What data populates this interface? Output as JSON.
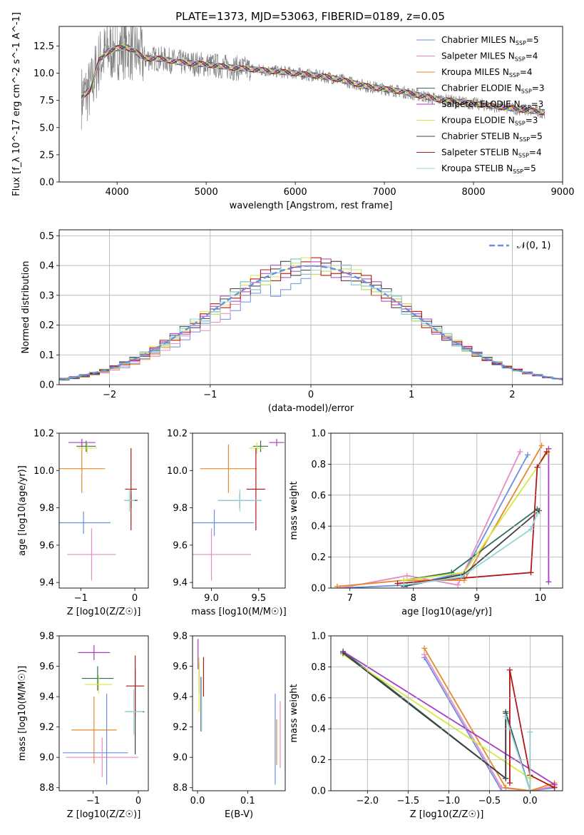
{
  "figure": {
    "title": "PLATE=1373, MJD=53063, FIBERID=0189, z=0.05"
  },
  "series_styles": [
    {
      "name": "Chabrier MILES",
      "n_ssp": "5",
      "color": "#6a8fe0"
    },
    {
      "name": "Salpeter MILES",
      "n_ssp": "4",
      "color": "#e98ac6"
    },
    {
      "name": "Kroupa MILES",
      "n_ssp": "4",
      "color": "#e6892b"
    },
    {
      "name": "Chabrier ELODIE",
      "n_ssp": "3",
      "color": "#2f6e58"
    },
    {
      "name": "Salpeter ELODIE",
      "n_ssp": "3",
      "color": "#a83cc2"
    },
    {
      "name": "Kroupa ELODIE",
      "n_ssp": "3",
      "color": "#d6e840"
    },
    {
      "name": "Chabrier STELIB",
      "n_ssp": "5",
      "color": "#404040"
    },
    {
      "name": "Salpeter STELIB",
      "n_ssp": "4",
      "color": "#b01818"
    },
    {
      "name": "Kroupa STELIB",
      "n_ssp": "5",
      "color": "#8fd6d9"
    }
  ],
  "chart_data": [
    {
      "id": "spectrum",
      "type": "line",
      "title": "PLATE=1373, MJD=53063, FIBERID=0189, z=0.05",
      "xlabel": "wavelength [Angstrom, rest frame]",
      "ylabel": "Flux [f_λ 10^-17 erg cm^-2 s^-1 A^-1]",
      "xlim": [
        3350,
        9000
      ],
      "ylim": [
        0,
        14.3
      ],
      "xticks": [
        "4000",
        "5000",
        "6000",
        "7000",
        "8000",
        "9000"
      ],
      "yticks": [
        "0.0",
        "2.5",
        "5.0",
        "7.5",
        "10.0",
        "12.5"
      ],
      "grid": false,
      "legend": "top-right",
      "data_color": "#808080",
      "data_extent_x": [
        3600,
        8800
      ],
      "model_x": [
        3600,
        3700,
        3800,
        3900,
        4000,
        4100,
        4200,
        4300,
        4500,
        4700,
        5000,
        5300,
        5600,
        6000,
        6400,
        6800,
        7200,
        7600,
        8000,
        8400,
        8800
      ],
      "model_y": [
        7.8,
        8.5,
        11.2,
        12.0,
        12.3,
        12.4,
        12.0,
        11.4,
        11.3,
        11.0,
        10.8,
        10.5,
        10.3,
        10.0,
        9.6,
        8.8,
        8.3,
        7.6,
        7.2,
        6.8,
        6.4
      ]
    },
    {
      "id": "residual-hist",
      "type": "step",
      "xlabel": "(data-model)/error",
      "ylabel": "Normed distribution",
      "xlim": [
        -2.5,
        2.5
      ],
      "ylim": [
        0,
        0.52
      ],
      "xticks": [
        "−2",
        "−1",
        "0",
        "1",
        "2"
      ],
      "yticks": [
        "0.0",
        "0.1",
        "0.2",
        "0.3",
        "0.4",
        "0.5"
      ],
      "grid": true,
      "legend": "top-right",
      "reference_label": "𝒩(0, 1)",
      "reference_color": "#6a8fe0",
      "bin_width": 0.1
    },
    {
      "id": "z-age",
      "type": "errorbar",
      "xlabel": "Z [log10(Z/Z☉)]",
      "ylabel": "age  [log10(age/yr)]",
      "xlim": [
        -1.4,
        0.25
      ],
      "ylim": [
        9.37,
        10.2
      ],
      "xticks": [
        "−1",
        "0"
      ],
      "yticks": [
        "9.4",
        "9.6",
        "9.8",
        "10.0",
        "10.2"
      ],
      "points": [
        {
          "series": 0,
          "x": -0.95,
          "y": 9.72,
          "xerr": 0.5,
          "yerr": 0.06
        },
        {
          "series": 1,
          "x": -0.8,
          "y": 9.55,
          "xerr": 0.45,
          "yerr": 0.14
        },
        {
          "series": 2,
          "x": -0.98,
          "y": 10.01,
          "xerr": 0.43,
          "yerr": 0.13
        },
        {
          "series": 3,
          "x": -0.9,
          "y": 10.13,
          "xerr": 0.18,
          "yerr": 0.03
        },
        {
          "series": 4,
          "x": -0.98,
          "y": 10.15,
          "xerr": 0.25,
          "yerr": 0.02
        },
        {
          "series": 5,
          "x": -0.88,
          "y": 10.12,
          "xerr": 0.18,
          "yerr": 0.03
        },
        {
          "series": 6,
          "x": -0.07,
          "y": 9.84,
          "xerr": 0.12,
          "yerr": 0.04
        },
        {
          "series": 7,
          "x": -0.07,
          "y": 9.9,
          "xerr": 0.11,
          "yerr": 0.22
        },
        {
          "series": 8,
          "x": -0.1,
          "y": 9.84,
          "xerr": 0.1,
          "yerr": 0.06
        }
      ]
    },
    {
      "id": "mass-age",
      "type": "errorbar",
      "xlabel": "mass [log10(M/M☉)]",
      "ylabel": "",
      "xlim": [
        8.8,
        9.78
      ],
      "ylim": [
        9.37,
        10.2
      ],
      "xticks": [
        "9.0",
        "9.5"
      ],
      "yticks": [
        "9.4",
        "9.6",
        "9.8",
        "10.0",
        "10.2"
      ],
      "points": [
        {
          "series": 0,
          "x": 9.03,
          "y": 9.72,
          "xerr": 0.42,
          "yerr": 0.07
        },
        {
          "series": 1,
          "x": 9.0,
          "y": 9.55,
          "xerr": 0.42,
          "yerr": 0.14
        },
        {
          "series": 2,
          "x": 9.18,
          "y": 10.01,
          "xerr": 0.3,
          "yerr": 0.13
        },
        {
          "series": 3,
          "x": 9.52,
          "y": 10.13,
          "xerr": 0.08,
          "yerr": 0.03
        },
        {
          "series": 4,
          "x": 9.69,
          "y": 10.15,
          "xerr": 0.08,
          "yerr": 0.02
        },
        {
          "series": 5,
          "x": 9.48,
          "y": 10.12,
          "xerr": 0.08,
          "yerr": 0.03
        },
        {
          "series": 6,
          "x": 9.3,
          "y": 9.84,
          "xerr": 0.23,
          "yerr": 0.04
        },
        {
          "series": 7,
          "x": 9.47,
          "y": 9.9,
          "xerr": 0.1,
          "yerr": 0.22
        },
        {
          "series": 8,
          "x": 9.3,
          "y": 9.84,
          "xerr": 0.23,
          "yerr": 0.06
        }
      ]
    },
    {
      "id": "age-weight",
      "type": "line",
      "xlabel": "age  [log10(age/yr)]",
      "ylabel": "mass weight",
      "xlim": [
        6.7,
        10.35
      ],
      "ylim": [
        0,
        1
      ],
      "xticks": [
        "7",
        "8",
        "9",
        "10"
      ],
      "yticks": [
        "0.0",
        "0.2",
        "0.4",
        "0.6",
        "0.8",
        "1.0"
      ],
      "grid": true,
      "series": [
        {
          "series": 0,
          "x": [
            6.85,
            7.9,
            8.8,
            9.8
          ],
          "y": [
            0.0,
            0.02,
            0.1,
            0.86
          ]
        },
        {
          "series": 1,
          "x": [
            6.85,
            7.9,
            8.7,
            9.68
          ],
          "y": [
            0.0,
            0.08,
            0.02,
            0.88
          ]
        },
        {
          "series": 2,
          "x": [
            6.8,
            7.85,
            8.8,
            10.02
          ],
          "y": [
            0.01,
            0.05,
            0.05,
            0.92
          ]
        },
        {
          "series": 3,
          "x": [
            7.85,
            8.6,
            9.95
          ],
          "y": [
            0.05,
            0.1,
            0.51
          ]
        },
        {
          "series": 4,
          "x": [
            10.13,
            10.13
          ],
          "y": [
            0.04,
            0.9
          ]
        },
        {
          "series": 5,
          "x": [
            7.85,
            8.8,
            10.12
          ],
          "y": [
            0.05,
            0.1,
            0.88
          ]
        },
        {
          "series": 6,
          "x": [
            7.85,
            8.8,
            9.98
          ],
          "y": [
            0.01,
            0.09,
            0.5
          ]
        },
        {
          "series": 7,
          "x": [
            7.75,
            9.85,
            9.95,
            10.1
          ],
          "y": [
            0.03,
            0.1,
            0.78,
            0.88
          ]
        },
        {
          "series": 8,
          "x": [
            7.85,
            8.75,
            9.85,
            9.95
          ],
          "y": [
            0.02,
            0.07,
            0.38,
            0.48
          ]
        }
      ]
    },
    {
      "id": "z-mass",
      "type": "errorbar",
      "xlabel": "Z [log10(Z/Z☉)]",
      "ylabel": "mass [log10(M/M☉)]",
      "xlim": [
        -1.75,
        0.22
      ],
      "ylim": [
        8.78,
        9.8
      ],
      "xticks": [
        "−1",
        "0"
      ],
      "yticks": [
        "8.8",
        "9.0",
        "9.2",
        "9.4",
        "9.6",
        "9.8"
      ],
      "points": [
        {
          "series": 0,
          "x": -0.95,
          "y": 9.03,
          "xerr": 0.72,
          "yerr": 0.0
        },
        {
          "series": 1,
          "x": -0.8,
          "y": 9.0,
          "xerr": 0.8,
          "yerr": 0.13
        },
        {
          "series": 2,
          "x": -0.98,
          "y": 9.18,
          "xerr": 0.5,
          "yerr": 0.22
        },
        {
          "series": 3,
          "x": -0.9,
          "y": 9.52,
          "xerr": 0.35,
          "yerr": 0.08
        },
        {
          "series": 4,
          "x": -0.98,
          "y": 9.69,
          "xerr": 0.35,
          "yerr": 0.05
        },
        {
          "series": 5,
          "x": -0.88,
          "y": 9.48,
          "xerr": 0.3,
          "yerr": 0.06
        },
        {
          "series": 6,
          "x": -0.07,
          "y": 9.3,
          "xerr": 0.2,
          "yerr": 0.28
        },
        {
          "series": 7,
          "x": -0.07,
          "y": 9.47,
          "xerr": 0.2,
          "yerr": 0.2
        },
        {
          "series": 8,
          "x": -0.1,
          "y": 9.3,
          "xerr": 0.2,
          "yerr": 0.15
        },
        {
          "series": 0,
          "x": -0.7,
          "y": 9.12,
          "xerr": 0.0,
          "yerr": 0.3
        }
      ]
    },
    {
      "id": "ebv-mass",
      "type": "errorbar",
      "xlabel": "E(B-V)",
      "ylabel": "",
      "xlim": [
        -0.01,
        0.175
      ],
      "ylim": [
        8.78,
        9.8
      ],
      "xticks": [
        "0.0",
        "0.1"
      ],
      "yticks": [
        "8.8",
        "9.0",
        "9.2",
        "9.4",
        "9.6",
        "9.8"
      ],
      "points": [
        {
          "series": 0,
          "x": 0.155,
          "y": 9.12,
          "xerr": 0.0,
          "yerr": 0.3
        },
        {
          "series": 1,
          "x": 0.165,
          "y": 9.15,
          "xerr": 0.0,
          "yerr": 0.22
        },
        {
          "series": 2,
          "x": 0.158,
          "y": 9.1,
          "xerr": 0.0,
          "yerr": 0.15
        },
        {
          "series": 3,
          "x": 0.003,
          "y": 9.52,
          "xerr": 0.0,
          "yerr": 0.1
        },
        {
          "series": 4,
          "x": 0.001,
          "y": 9.68,
          "xerr": 0.0,
          "yerr": 0.1
        },
        {
          "series": 5,
          "x": 0.003,
          "y": 9.48,
          "xerr": 0.0,
          "yerr": 0.18
        },
        {
          "series": 6,
          "x": 0.007,
          "y": 9.35,
          "xerr": 0.0,
          "yerr": 0.18
        },
        {
          "series": 7,
          "x": 0.012,
          "y": 9.53,
          "xerr": 0.0,
          "yerr": 0.13
        },
        {
          "series": 8,
          "x": 0.008,
          "y": 9.35,
          "xerr": 0.0,
          "yerr": 0.18
        }
      ]
    },
    {
      "id": "z-weight",
      "type": "line",
      "xlabel": "Z [log10(Z/Z☉)]",
      "ylabel": "mass weight",
      "xlim": [
        -2.45,
        0.4
      ],
      "ylim": [
        0,
        1
      ],
      "xticks": [
        "−2.0",
        "−1.5",
        "−1.0",
        "−0.5",
        "0.0"
      ],
      "yticks": [
        "0.0",
        "0.2",
        "0.4",
        "0.6",
        "0.8",
        "1.0"
      ],
      "grid": true,
      "series": [
        {
          "series": 0,
          "x": [
            -1.3,
            -0.35,
            0.0,
            0.3
          ],
          "y": [
            0.86,
            0.0,
            0.0,
            0.02
          ]
        },
        {
          "series": 1,
          "x": [
            -1.3,
            -0.35,
            0.0,
            0.3
          ],
          "y": [
            0.88,
            0.02,
            0.0,
            0.03
          ]
        },
        {
          "series": 2,
          "x": [
            -1.3,
            -0.3,
            0.0,
            0.3
          ],
          "y": [
            0.92,
            0.02,
            0.0,
            0.05
          ]
        },
        {
          "series": 3,
          "x": [
            -2.3,
            -0.3,
            -0.3,
            0.0
          ],
          "y": [
            0.9,
            0.08,
            0.51,
            0.0
          ]
        },
        {
          "series": 4,
          "x": [
            -2.3,
            0.3
          ],
          "y": [
            0.9,
            0.04
          ]
        },
        {
          "series": 5,
          "x": [
            -2.3,
            0.0,
            0.0
          ],
          "y": [
            0.88,
            0.08,
            0.0
          ]
        },
        {
          "series": 6,
          "x": [
            -2.3,
            -0.3,
            -0.3,
            0.0
          ],
          "y": [
            0.89,
            0.08,
            0.5,
            0.0
          ]
        },
        {
          "series": 7,
          "x": [
            -0.25,
            -0.25,
            0.0,
            0.3
          ],
          "y": [
            0.05,
            0.78,
            0.1,
            0.02
          ]
        },
        {
          "series": 8,
          "x": [
            -0.3,
            0.0,
            0.0
          ],
          "y": [
            0.48,
            0.0,
            0.38
          ]
        }
      ]
    }
  ]
}
